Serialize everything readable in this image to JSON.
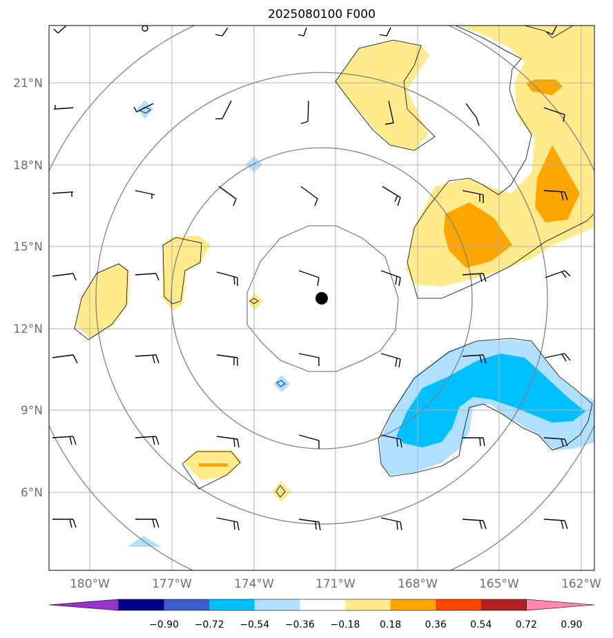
{
  "title": "2025080100 F000",
  "lat_labels": [
    "21°N",
    "18°N",
    "15°N",
    "12°N",
    "9°N",
    "6°N"
  ],
  "lon_labels": [
    "180°W",
    "177°W",
    "174°W",
    "171°W",
    "168°W",
    "165°W",
    "162°W"
  ],
  "colorbar": {
    "labels": [
      "−0.90",
      "−0.72",
      "−0.54",
      "−0.36",
      "−0.18",
      "0.18",
      "0.36",
      "0.54",
      "0.72",
      "0.90"
    ],
    "colors": [
      "#9932cc",
      "#00008b",
      "#3a5fcd",
      "#00bfff",
      "#b0e0ff",
      "#ffffff",
      "#ffeb8c",
      "#ffa500",
      "#ff4500",
      "#b22222",
      "#ff88aa"
    ]
  },
  "colors": {
    "pos_weak": "#ffeb8c",
    "pos_strong": "#ffa500",
    "neg_weak": "#b0e0ff",
    "neg_strong": "#00bfff",
    "grid": "#b0b0b0",
    "circle": "#808080",
    "contour": "#000000"
  },
  "storm_center_marker": "black-dot"
}
